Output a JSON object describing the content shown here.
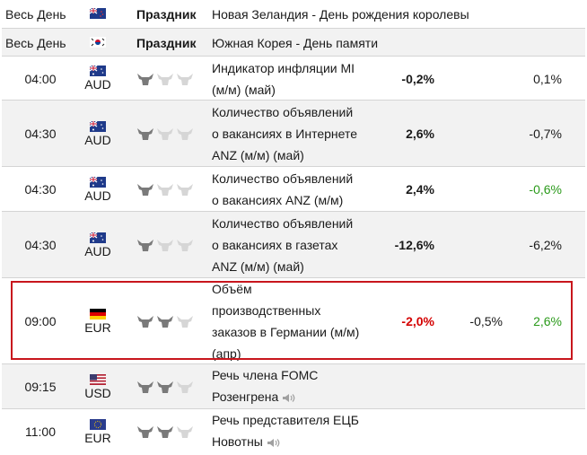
{
  "colors": {
    "negative": "#d40000",
    "positive": "#2a9a1a",
    "highlight": "#c8161d",
    "icon_active": "#7a7a7a",
    "icon_inactive": "#d6d6d6"
  },
  "holidays": [
    {
      "time": "Весь День",
      "flag_icon": "new-zealand-flag-icon",
      "type": "Праздник",
      "event": "Новая Зеландия - День рождения королевы"
    },
    {
      "time": "Весь День",
      "flag_icon": "south-korea-flag-icon",
      "type": "Праздник",
      "event": "Южная Корея - День памяти"
    }
  ],
  "events": [
    {
      "time": "04:00",
      "currency": "AUD",
      "importance": 1,
      "event_lines": [
        "Индикатор инфляции MI",
        "(м/м) (май)"
      ],
      "actual": "-0,2%",
      "forecast": "",
      "previous": "0,1%"
    },
    {
      "time": "04:30",
      "currency": "AUD",
      "importance": 1,
      "event_lines": [
        "Количество объявлений",
        "о вакансиях в Интернете",
        "ANZ (м/м) (май)"
      ],
      "actual": "2,6%",
      "forecast": "",
      "previous": "-0,7%"
    },
    {
      "time": "04:30",
      "currency": "AUD",
      "importance": 1,
      "event_lines": [
        "Количество объявлений",
        "о вакансиях ANZ (м/м)"
      ],
      "actual": "2,4%",
      "forecast": "",
      "previous": "-0,6%"
    },
    {
      "time": "04:30",
      "currency": "AUD",
      "importance": 1,
      "event_lines": [
        "Количество объявлений",
        "о вакансиях в газетах",
        "ANZ (м/м) (май)"
      ],
      "actual": "-12,6%",
      "forecast": "",
      "previous": "-6,2%"
    },
    {
      "time": "09:00",
      "currency": "EUR",
      "importance": 2,
      "event_lines": [
        "Объём",
        "производственных",
        "заказов в Германии (м/м)",
        "(апр)"
      ],
      "actual": "-2,0%",
      "forecast": "-0,5%",
      "previous": "2,6%"
    },
    {
      "time": "09:15",
      "currency": "USD",
      "importance": 2,
      "event_lines": [
        "Речь члена FOMC",
        "Розенгрена"
      ],
      "actual": "",
      "forecast": "",
      "previous": ""
    },
    {
      "time": "11:00",
      "currency": "EUR",
      "importance": 2,
      "event_lines": [
        "Речь представителя ЕЦБ",
        "Новотны"
      ],
      "actual": "",
      "forecast": "",
      "previous": ""
    }
  ]
}
